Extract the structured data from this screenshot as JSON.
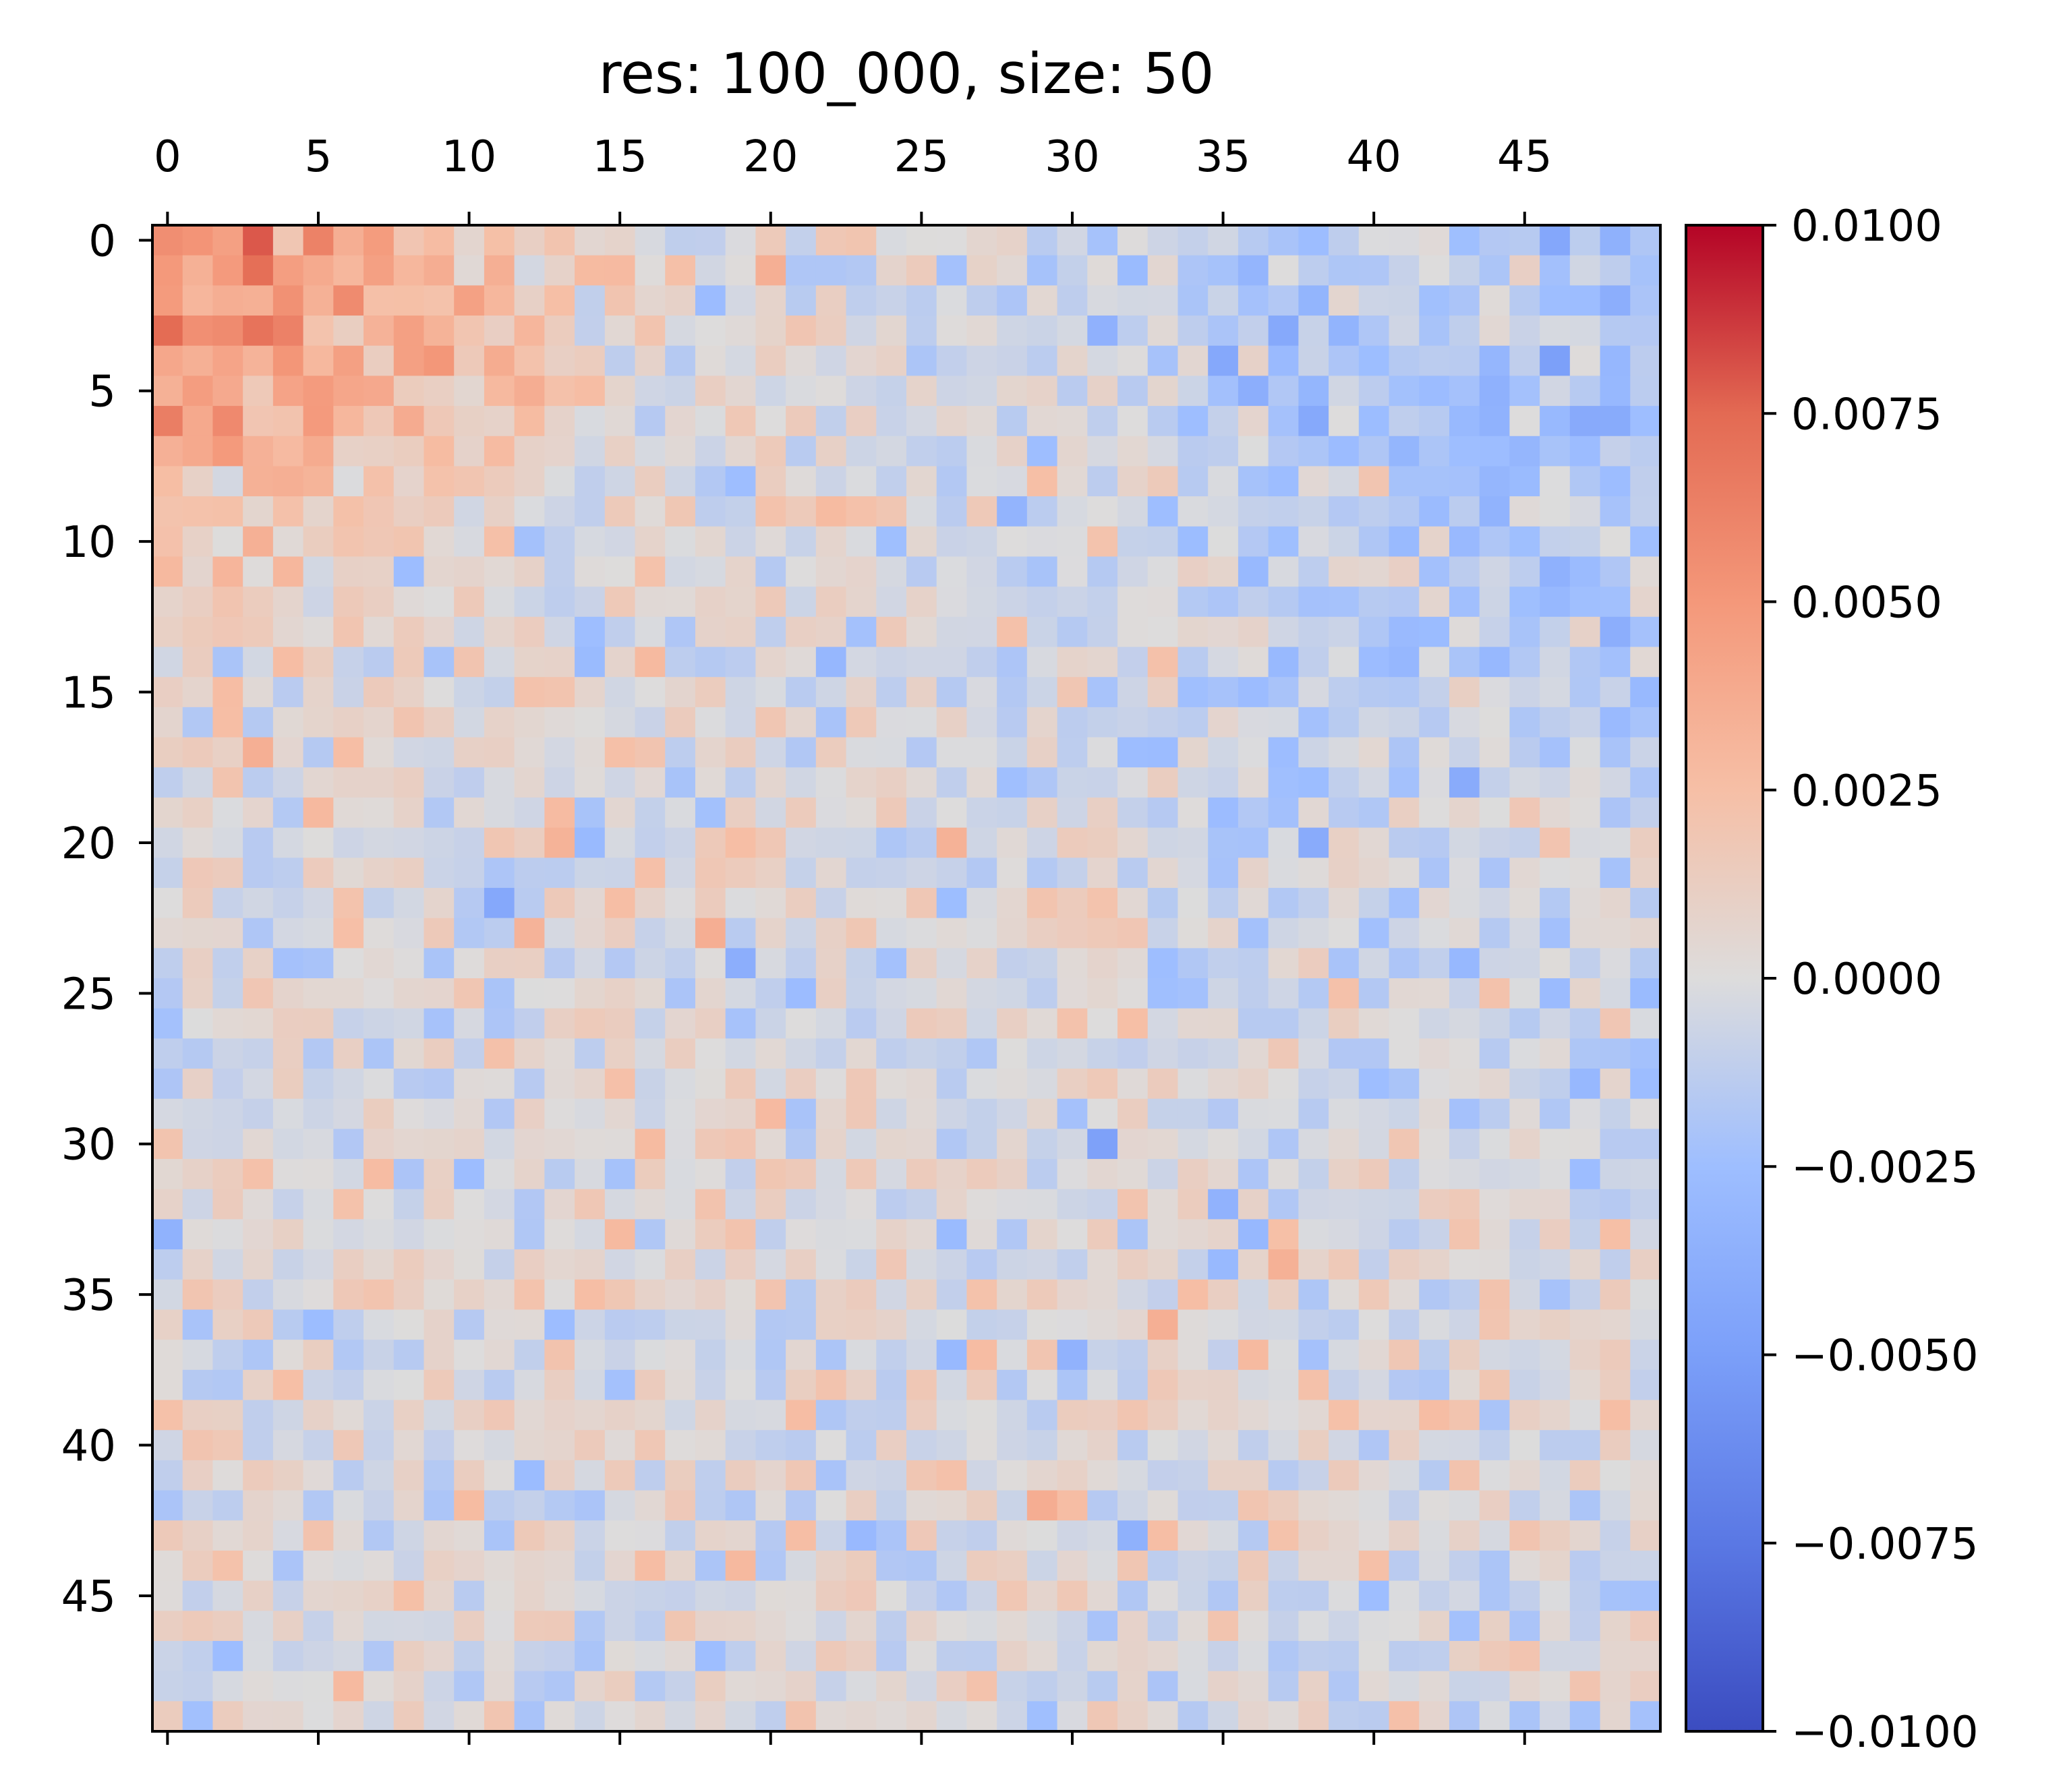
{
  "chart_data": {
    "type": "heatmap",
    "title": "res: 100_000, size: 50",
    "colormap": "coolwarm",
    "rows": 50,
    "cols": 50,
    "vmin": -0.01,
    "vmax": 0.01,
    "x_ticks": [
      0,
      5,
      10,
      15,
      20,
      25,
      30,
      35,
      40,
      45
    ],
    "y_ticks": [
      0,
      5,
      10,
      15,
      20,
      25,
      30,
      35,
      40,
      45
    ],
    "x_tick_labels": [
      "0",
      "5",
      "10",
      "15",
      "20",
      "25",
      "30",
      "35",
      "40",
      "45"
    ],
    "y_tick_labels": [
      "0",
      "5",
      "10",
      "15",
      "20",
      "25",
      "30",
      "35",
      "40",
      "45"
    ],
    "colorbar_ticks": [
      0.01,
      0.0075,
      0.005,
      0.0025,
      0.0,
      -0.0025,
      -0.005,
      -0.0075,
      -0.01
    ],
    "colorbar_tick_labels": [
      "0.0100",
      "0.0075",
      "0.0050",
      "0.0025",
      "0.0000",
      "−0.0025",
      "−0.0050",
      "−0.0075",
      "−0.0100"
    ],
    "pattern_description_values": {
      "top_left_block_peak": 0.0075,
      "top_right_region_typical": -0.002,
      "background_noise_std": 0.0012
    },
    "seed": 100000
  }
}
